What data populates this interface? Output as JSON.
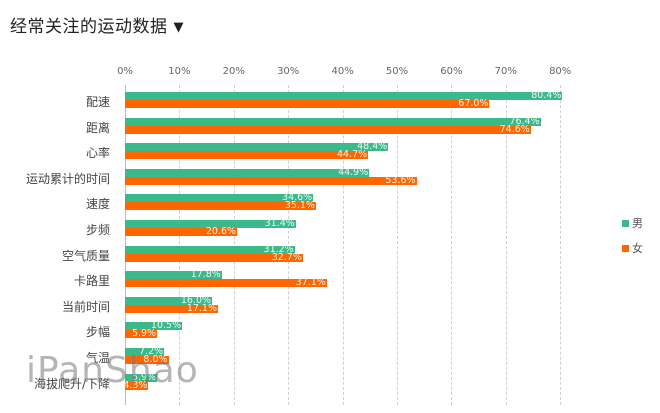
{
  "header": {
    "title": "经常关注的运动数据",
    "dropdown_icon": "▼"
  },
  "colors": {
    "male": "#3cb98a",
    "female": "#ff6600"
  },
  "legend": [
    {
      "label": "男",
      "color": "#3cb98a"
    },
    {
      "label": "女",
      "color": "#ff6600"
    }
  ],
  "watermark": "iPanShao",
  "chart_data": {
    "type": "bar",
    "orientation": "horizontal",
    "title": "经常关注的运动数据",
    "xlabel": "",
    "ylabel": "",
    "xlim": [
      0,
      80
    ],
    "x_ticks": [
      "0%",
      "10%",
      "20%",
      "30%",
      "40%",
      "50%",
      "60%",
      "70%",
      "80%"
    ],
    "grid": true,
    "legend_position": "right",
    "categories": [
      "配速",
      "距离",
      "心率",
      "运动累计的时间",
      "速度",
      "步频",
      "空气质量",
      "卡路里",
      "当前时间",
      "步幅",
      "气温",
      "海拔爬升/下降"
    ],
    "series": [
      {
        "name": "男",
        "color": "#3cb98a",
        "values": [
          80.4,
          76.4,
          48.4,
          44.9,
          34.6,
          31.4,
          31.2,
          17.8,
          16.0,
          10.5,
          7.2,
          5.9
        ],
        "labels": [
          "80.4%",
          "76.4%",
          "48.4%",
          "44.9%",
          "34.6%",
          "31.4%",
          "31.2%",
          "17.8%",
          "16.0%",
          "10.5%",
          "7.2%",
          "5.9%"
        ]
      },
      {
        "name": "女",
        "color": "#ff6600",
        "values": [
          67.0,
          74.6,
          44.7,
          53.6,
          35.1,
          20.6,
          32.7,
          37.1,
          17.1,
          5.9,
          8.0,
          4.3
        ],
        "labels": [
          "67.0%",
          "74.6%",
          "44.7%",
          "53.6%",
          "35.1%",
          "20.6%",
          "32.7%",
          "37.1%",
          "17.1%",
          "5.9%",
          "8.0%",
          "4.3%"
        ]
      }
    ]
  }
}
